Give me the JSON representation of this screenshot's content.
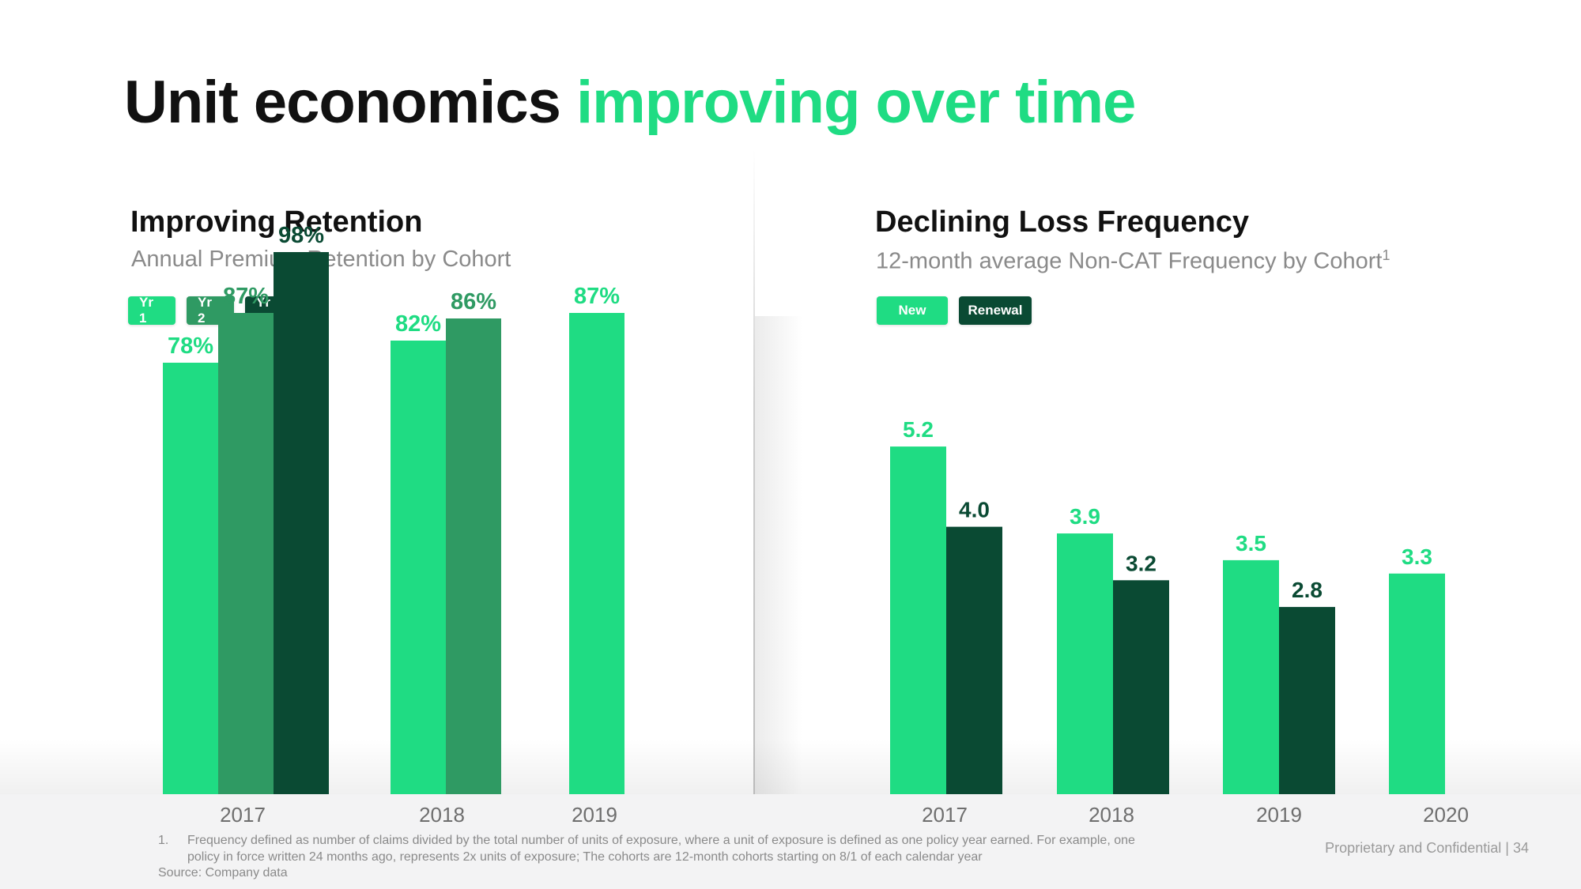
{
  "header": {
    "title_part1": "Unit economics",
    "title_part2": "improving over time"
  },
  "colors": {
    "green_light": "#1fdc83",
    "green_mid": "#2f9a63",
    "green_dark": "#0a4a33",
    "text_dark": "#111111",
    "text_gray": "#8a8a8a"
  },
  "left_panel": {
    "title": "Improving Retention",
    "subtitle": "Annual Premium Retention by Cohort",
    "legend": [
      "Yr 1",
      "Yr 2",
      "Yr 3"
    ]
  },
  "right_panel": {
    "title": "Declining Loss Frequency",
    "subtitle": "12-month average Non-CAT Frequency by Cohort",
    "subtitle_sup": "1",
    "legend": [
      "New",
      "Renewal"
    ]
  },
  "chart_data": [
    {
      "type": "bar",
      "title": "Improving Retention",
      "subtitle": "Annual Premium Retention by Cohort",
      "categories": [
        "2017",
        "2018",
        "2019"
      ],
      "series": [
        {
          "name": "Yr 1",
          "color": "#1fdc83",
          "values": [
            78,
            82,
            87
          ],
          "labels": [
            "78%",
            "82%",
            "87%"
          ]
        },
        {
          "name": "Yr 2",
          "color": "#2f9a63",
          "values": [
            87,
            86,
            null
          ],
          "labels": [
            "87%",
            "86%",
            ""
          ]
        },
        {
          "name": "Yr 3",
          "color": "#0a4a33",
          "values": [
            98,
            null,
            null
          ],
          "labels": [
            "98%",
            "",
            ""
          ]
        }
      ],
      "ylim": [
        0,
        100
      ],
      "legend_position": "top-left",
      "grid": false
    },
    {
      "type": "bar",
      "title": "Declining Loss Frequency",
      "subtitle": "12-month average Non-CAT Frequency by Cohort",
      "categories": [
        "2017",
        "2018",
        "2019",
        "2020"
      ],
      "series": [
        {
          "name": "New",
          "color": "#1fdc83",
          "values": [
            5.2,
            3.9,
            3.5,
            3.3
          ],
          "labels": [
            "5.2",
            "3.9",
            "3.5",
            "3.3"
          ]
        },
        {
          "name": "Renewal",
          "color": "#0a4a33",
          "values": [
            4.0,
            3.2,
            2.8,
            null
          ],
          "labels": [
            "4.0",
            "3.2",
            "2.8",
            ""
          ]
        }
      ],
      "ylim": [
        0,
        6
      ],
      "legend_position": "top-left",
      "grid": false
    }
  ],
  "footer": {
    "footnote_number": "1.",
    "footnote_text": "Frequency defined as number of claims divided by the total number of units of exposure, where a unit of exposure is defined as one policy year earned. For example, one policy in force written 24 months ago, represents 2x units of exposure; The cohorts are 12-month cohorts starting on 8/1 of each calendar year",
    "source": "Source: Company data",
    "confidential": "Proprietary and Confidential | 34"
  }
}
